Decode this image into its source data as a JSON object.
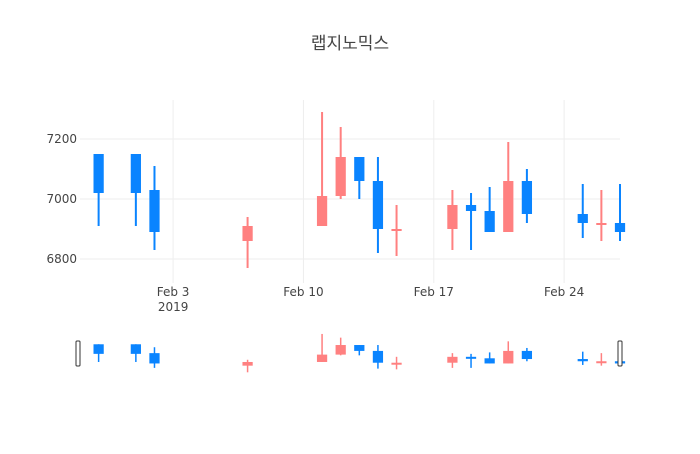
{
  "chart_data": {
    "type": "candlestick",
    "title": "랩지노믹스",
    "y_ticks": [
      6800,
      7000,
      7200
    ],
    "x_ticks": [
      {
        "date": "2019-02-03",
        "label": "Feb 3",
        "sublabel": "2019"
      },
      {
        "date": "2019-02-10",
        "label": "Feb 10",
        "sublabel": ""
      },
      {
        "date": "2019-02-17",
        "label": "Feb 17",
        "sublabel": ""
      },
      {
        "date": "2019-02-24",
        "label": "Feb 24",
        "sublabel": ""
      }
    ],
    "ylim": [
      6720,
      7330
    ],
    "xlim": [
      "2019-01-29",
      "2019-02-27"
    ],
    "grid": true,
    "rangeslider": true,
    "colors": {
      "increasing": "#ff8080",
      "decreasing": "#0a84ff",
      "grid": "#eeeeee",
      "text": "#444444",
      "title": "#444444"
    },
    "candles": [
      {
        "date": "2019-01-30",
        "open": 7150,
        "high": 7150,
        "low": 6910,
        "close": 7020
      },
      {
        "date": "2019-02-01",
        "open": 7150,
        "high": 7150,
        "low": 6910,
        "close": 7020
      },
      {
        "date": "2019-02-02",
        "open": 7030,
        "high": 7110,
        "low": 6830,
        "close": 6890
      },
      {
        "date": "2019-02-07",
        "open": 6860,
        "high": 6940,
        "low": 6770,
        "close": 6910
      },
      {
        "date": "2019-02-11",
        "open": 6910,
        "high": 7290,
        "low": 6910,
        "close": 7010
      },
      {
        "date": "2019-02-12",
        "open": 7010,
        "high": 7240,
        "low": 7000,
        "close": 7140
      },
      {
        "date": "2019-02-13",
        "open": 7140,
        "high": 7140,
        "low": 7000,
        "close": 7060
      },
      {
        "date": "2019-02-14",
        "open": 7060,
        "high": 7140,
        "low": 6820,
        "close": 6900
      },
      {
        "date": "2019-02-15",
        "open": 6900,
        "high": 6980,
        "low": 6810,
        "close": 6900
      },
      {
        "date": "2019-02-18",
        "open": 6900,
        "high": 7030,
        "low": 6830,
        "close": 6980
      },
      {
        "date": "2019-02-19",
        "open": 6980,
        "high": 7020,
        "low": 6830,
        "close": 6960
      },
      {
        "date": "2019-02-20",
        "open": 6960,
        "high": 7040,
        "low": 6890,
        "close": 6890
      },
      {
        "date": "2019-02-21",
        "open": 6890,
        "high": 7190,
        "low": 6890,
        "close": 7060
      },
      {
        "date": "2019-02-22",
        "open": 7060,
        "high": 7100,
        "low": 6920,
        "close": 6950
      },
      {
        "date": "2019-02-25",
        "open": 6950,
        "high": 7050,
        "low": 6870,
        "close": 6920
      },
      {
        "date": "2019-02-26",
        "open": 6920,
        "high": 7030,
        "low": 6860,
        "close": 6920
      },
      {
        "date": "2019-02-27",
        "open": 6920,
        "high": 7050,
        "low": 6860,
        "close": 6890
      }
    ]
  }
}
